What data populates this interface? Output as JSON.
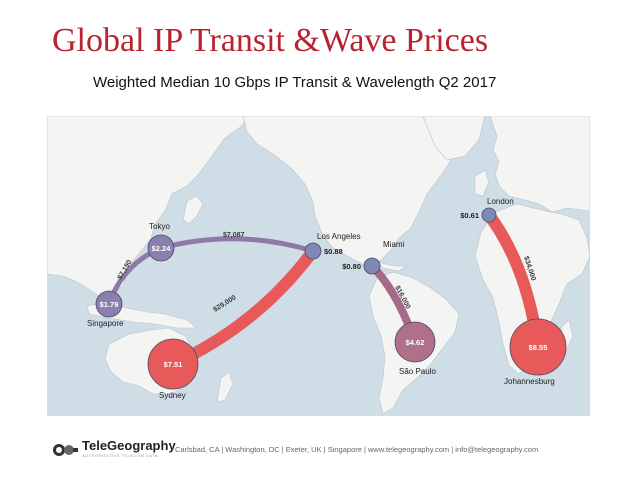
{
  "slide": {
    "title": "Global IP Transit &Wave Prices",
    "subtitle": "Weighted Median 10 Gbps IP Transit & Wavelength  Q2 2017"
  },
  "map": {
    "cities": [
      {
        "name": "Tokyo",
        "price": "$2.24",
        "color": "#8a7fae"
      },
      {
        "name": "Singapore",
        "price": "$1.79",
        "color": "#8a7fae"
      },
      {
        "name": "Sydney",
        "price": "$7.51",
        "color": "#e85a5a"
      },
      {
        "name": "Los Angeles",
        "price": "$0.88",
        "color": "#7f86b8"
      },
      {
        "name": "Miami",
        "price": "$0.80",
        "color": "#7f86b8"
      },
      {
        "name": "São Paulo",
        "price": "$4.62",
        "color": "#b0708a"
      },
      {
        "name": "London",
        "price": "$0.61",
        "color": "#7f86b8"
      },
      {
        "name": "Johannesburg",
        "price": "$8.55",
        "color": "#e85a5a"
      }
    ],
    "routes": [
      {
        "from": "Singapore",
        "to": "Tokyo",
        "wave_price": "$7,190"
      },
      {
        "from": "Tokyo",
        "to": "Los Angeles",
        "wave_price": "$7,087"
      },
      {
        "from": "Sydney",
        "to": "Los Angeles",
        "wave_price": "$29,000"
      },
      {
        "from": "Miami",
        "to": "São Paulo",
        "wave_price": "$16,000"
      },
      {
        "from": "London",
        "to": "Johannesburg",
        "wave_price": "$34,000"
      }
    ],
    "colors": {
      "ocean": "#cfdde6",
      "land": "#f4f4f2",
      "high": "#e85a5a",
      "low": "#8a7fae"
    }
  },
  "footer": {
    "brand": "TeleGeography",
    "tagline": "AUTHORITATIVE TELECOM DATA",
    "contact": "Carlsbad, CA | Washington, DC | Exeter, UK | Singapore | www.telegeography.com | info@telegeography.com"
  }
}
